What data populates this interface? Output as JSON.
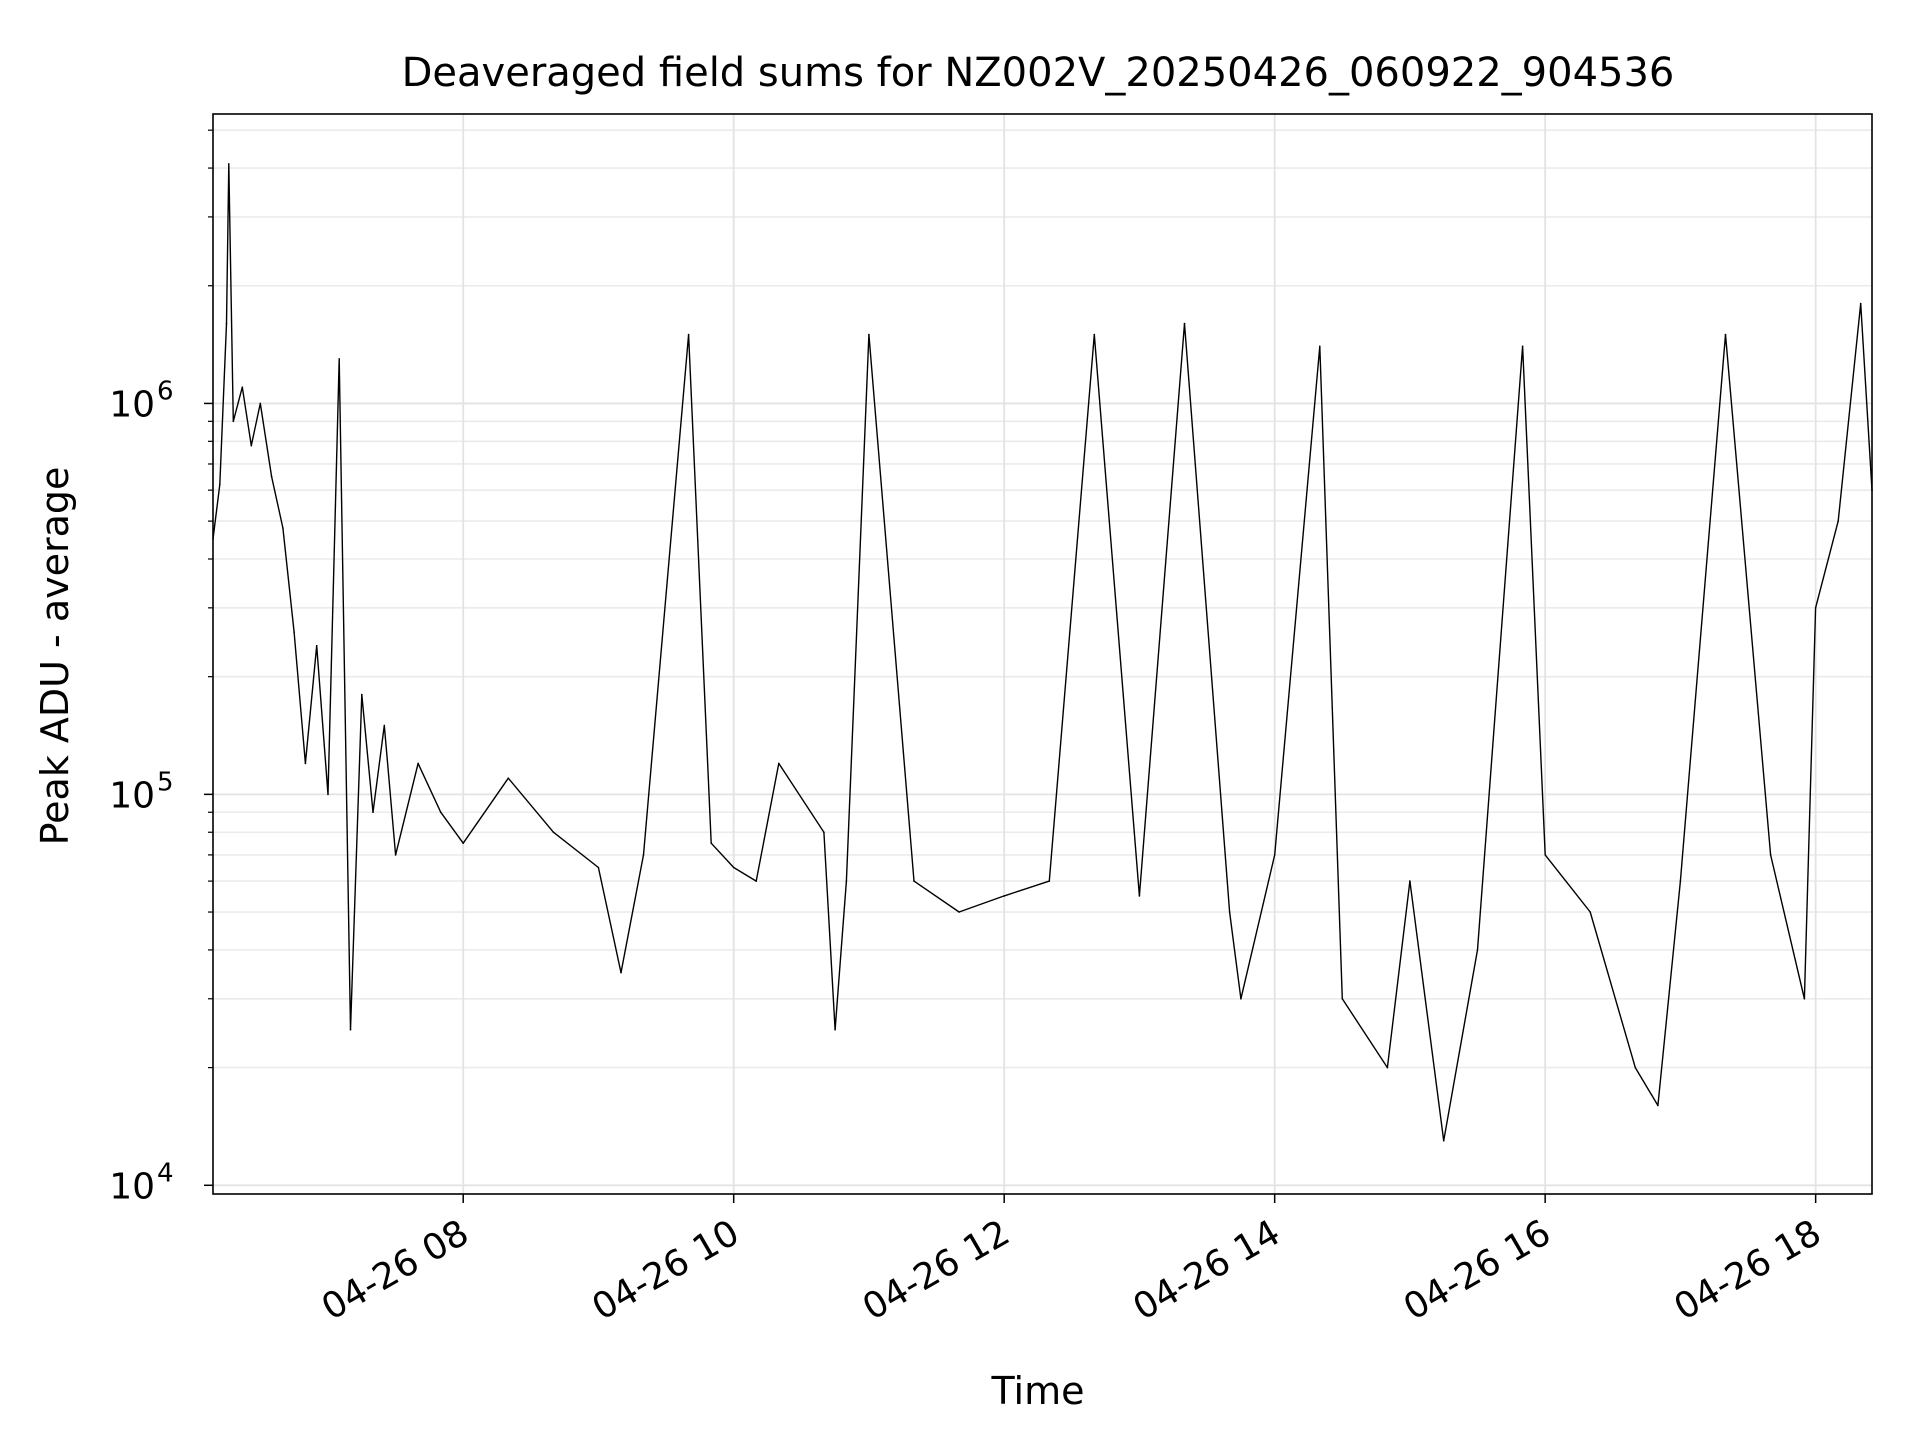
{
  "chart_data": {
    "type": "line",
    "title": "Deaveraged field sums for NZ002V_20250426_060922_904536",
    "xlabel": "Time",
    "ylabel": "Peak ADU - average",
    "yscale": "log",
    "ylim": [
      9500,
      5500000
    ],
    "xlim": [
      "2025-04-26 06:09",
      "2025-04-26 18:25"
    ],
    "grid": true,
    "line_color": "#000000",
    "x_ticks": [
      {
        "x": "2025-04-26 08:00",
        "label": "04-26 08"
      },
      {
        "x": "2025-04-26 10:00",
        "label": "04-26 10"
      },
      {
        "x": "2025-04-26 12:00",
        "label": "04-26 12"
      },
      {
        "x": "2025-04-26 14:00",
        "label": "04-26 14"
      },
      {
        "x": "2025-04-26 16:00",
        "label": "04-26 16"
      },
      {
        "x": "2025-04-26 18:00",
        "label": "04-26 18"
      }
    ],
    "y_ticks": [
      {
        "y": 10000,
        "label": "10",
        "exp": "4"
      },
      {
        "y": 100000,
        "label": "10",
        "exp": "5"
      },
      {
        "y": 1000000,
        "label": "10",
        "exp": "6"
      }
    ],
    "series": [
      {
        "points": [
          [
            "2025-04-26 06:09",
            450000
          ],
          [
            "2025-04-26 06:12",
            620000
          ],
          [
            "2025-04-26 06:15",
            1600000
          ],
          [
            "2025-04-26 06:16",
            4100000
          ],
          [
            "2025-04-26 06:18",
            900000
          ],
          [
            "2025-04-26 06:22",
            1100000
          ],
          [
            "2025-04-26 06:26",
            780000
          ],
          [
            "2025-04-26 06:30",
            1000000
          ],
          [
            "2025-04-26 06:35",
            650000
          ],
          [
            "2025-04-26 06:40",
            480000
          ],
          [
            "2025-04-26 06:45",
            260000
          ],
          [
            "2025-04-26 06:50",
            120000
          ],
          [
            "2025-04-26 06:55",
            240000
          ],
          [
            "2025-04-26 07:00",
            100000
          ],
          [
            "2025-04-26 07:05",
            1300000
          ],
          [
            "2025-04-26 07:10",
            25000
          ],
          [
            "2025-04-26 07:15",
            180000
          ],
          [
            "2025-04-26 07:20",
            90000
          ],
          [
            "2025-04-26 07:25",
            150000
          ],
          [
            "2025-04-26 07:30",
            70000
          ],
          [
            "2025-04-26 07:40",
            120000
          ],
          [
            "2025-04-26 07:50",
            90000
          ],
          [
            "2025-04-26 08:00",
            75000
          ],
          [
            "2025-04-26 08:20",
            110000
          ],
          [
            "2025-04-26 08:40",
            80000
          ],
          [
            "2025-04-26 09:00",
            65000
          ],
          [
            "2025-04-26 09:10",
            35000
          ],
          [
            "2025-04-26 09:20",
            70000
          ],
          [
            "2025-04-26 09:40",
            1500000
          ],
          [
            "2025-04-26 09:50",
            75000
          ],
          [
            "2025-04-26 10:00",
            65000
          ],
          [
            "2025-04-26 10:10",
            60000
          ],
          [
            "2025-04-26 10:20",
            120000
          ],
          [
            "2025-04-26 10:40",
            80000
          ],
          [
            "2025-04-26 10:45",
            25000
          ],
          [
            "2025-04-26 10:50",
            60000
          ],
          [
            "2025-04-26 11:00",
            1500000
          ],
          [
            "2025-04-26 11:20",
            60000
          ],
          [
            "2025-04-26 11:40",
            50000
          ],
          [
            "2025-04-26 12:00",
            55000
          ],
          [
            "2025-04-26 12:20",
            60000
          ],
          [
            "2025-04-26 12:40",
            1500000
          ],
          [
            "2025-04-26 13:00",
            55000
          ],
          [
            "2025-04-26 13:20",
            1600000
          ],
          [
            "2025-04-26 13:40",
            50000
          ],
          [
            "2025-04-26 13:45",
            30000
          ],
          [
            "2025-04-26 14:00",
            70000
          ],
          [
            "2025-04-26 14:20",
            1400000
          ],
          [
            "2025-04-26 14:30",
            30000
          ],
          [
            "2025-04-26 14:50",
            20000
          ],
          [
            "2025-04-26 15:00",
            60000
          ],
          [
            "2025-04-26 15:15",
            13000
          ],
          [
            "2025-04-26 15:30",
            40000
          ],
          [
            "2025-04-26 15:50",
            1400000
          ],
          [
            "2025-04-26 16:00",
            70000
          ],
          [
            "2025-04-26 16:20",
            50000
          ],
          [
            "2025-04-26 16:40",
            20000
          ],
          [
            "2025-04-26 16:50",
            16000
          ],
          [
            "2025-04-26 17:00",
            60000
          ],
          [
            "2025-04-26 17:20",
            1500000
          ],
          [
            "2025-04-26 17:40",
            70000
          ],
          [
            "2025-04-26 17:55",
            30000
          ],
          [
            "2025-04-26 18:00",
            300000
          ],
          [
            "2025-04-26 18:10",
            500000
          ],
          [
            "2025-04-26 18:20",
            1800000
          ],
          [
            "2025-04-26 18:25",
            600000
          ]
        ]
      }
    ]
  }
}
